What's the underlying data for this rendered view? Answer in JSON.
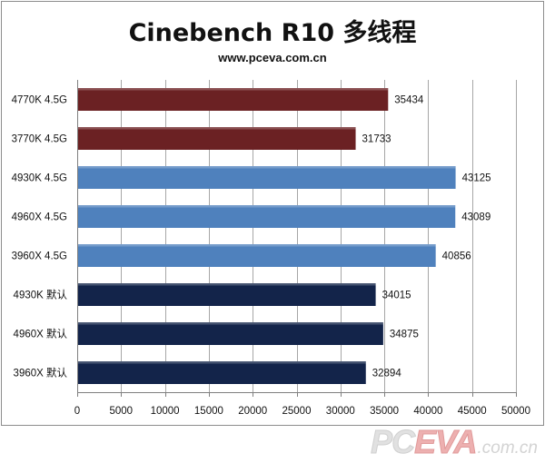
{
  "title": "Cinebench R10 多线程",
  "subtitle": "www.pceva.com.cn",
  "watermark": {
    "brand_a": "PC",
    "brand_b": "EVA",
    "domain": ".com.cn"
  },
  "colors": {
    "grid": "#a6a6a6",
    "group_4770_3770": "#6b2123",
    "group_x_oc": "#4f81bd",
    "group_default": "#13244a"
  },
  "chart_data": {
    "type": "bar",
    "orientation": "horizontal",
    "categories": [
      "4770K 4.5G",
      "3770K 4.5G",
      "4930K 4.5G",
      "4960X 4.5G",
      "3960X 4.5G",
      "4930K 默认",
      "4960X 默认",
      "3960X 默认"
    ],
    "values": [
      35434,
      31733,
      43125,
      43089,
      40856,
      34015,
      34875,
      32894
    ],
    "bar_colors": [
      "#6b2123",
      "#6b2123",
      "#4f81bd",
      "#4f81bd",
      "#4f81bd",
      "#13244a",
      "#13244a",
      "#13244a"
    ],
    "xlim": [
      0,
      50000
    ],
    "xticks": [
      0,
      5000,
      10000,
      15000,
      20000,
      25000,
      30000,
      35000,
      40000,
      45000,
      50000
    ],
    "grid": true,
    "data_labels": true
  }
}
